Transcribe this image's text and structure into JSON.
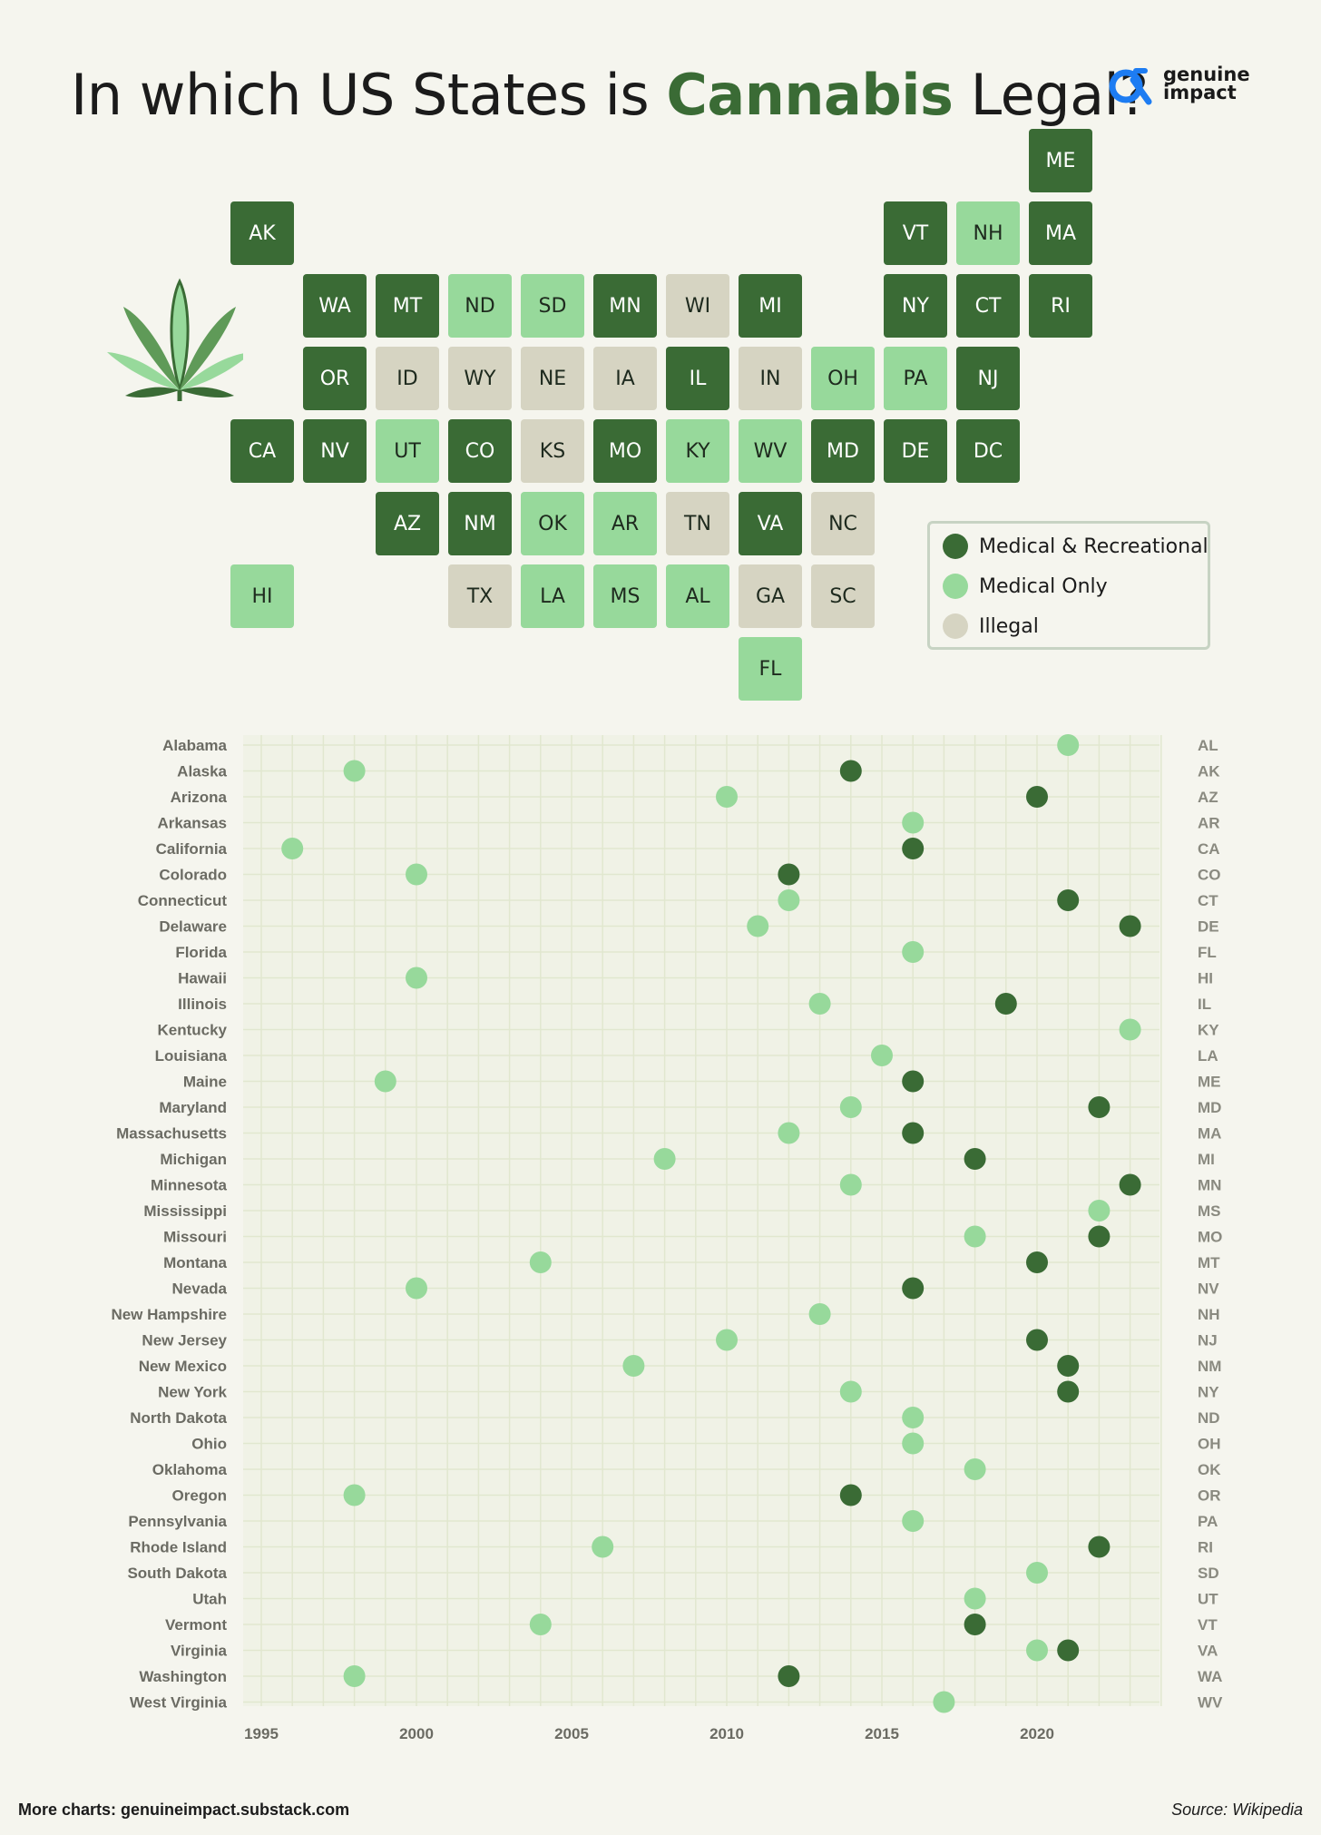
{
  "title": {
    "prefix": "In which US States is ",
    "highlight": "Cannabis",
    "suffix": " Legal?"
  },
  "brand": {
    "line1": "genuine",
    "line2": "impact"
  },
  "colors": {
    "recreational": "#3a6b35",
    "medical": "#97d99b",
    "illegal": "#d6d4c2",
    "bar": "#9fb59c"
  },
  "legend": [
    {
      "key": "rec",
      "label": "Medical & Recreational"
    },
    {
      "key": "med",
      "label": "Medical Only"
    },
    {
      "key": "ill",
      "label": "Illegal"
    }
  ],
  "map": {
    "rows": [
      [
        {
          "col": 11,
          "abbr": "ME",
          "status": "rec"
        }
      ],
      [
        {
          "col": 0,
          "abbr": "AK",
          "status": "rec"
        },
        {
          "col": 9,
          "abbr": "VT",
          "status": "rec"
        },
        {
          "col": 10,
          "abbr": "NH",
          "status": "med"
        },
        {
          "col": 11,
          "abbr": "MA",
          "status": "rec"
        }
      ],
      [
        {
          "col": 1,
          "abbr": "WA",
          "status": "rec"
        },
        {
          "col": 2,
          "abbr": "MT",
          "status": "rec"
        },
        {
          "col": 3,
          "abbr": "ND",
          "status": "med"
        },
        {
          "col": 4,
          "abbr": "SD",
          "status": "med"
        },
        {
          "col": 5,
          "abbr": "MN",
          "status": "rec"
        },
        {
          "col": 6,
          "abbr": "WI",
          "status": "ill"
        },
        {
          "col": 7,
          "abbr": "MI",
          "status": "rec"
        },
        {
          "col": 9,
          "abbr": "NY",
          "status": "rec"
        },
        {
          "col": 10,
          "abbr": "CT",
          "status": "rec"
        },
        {
          "col": 11,
          "abbr": "RI",
          "status": "rec"
        }
      ],
      [
        {
          "col": 1,
          "abbr": "OR",
          "status": "rec"
        },
        {
          "col": 2,
          "abbr": "ID",
          "status": "ill"
        },
        {
          "col": 3,
          "abbr": "WY",
          "status": "ill"
        },
        {
          "col": 4,
          "abbr": "NE",
          "status": "ill"
        },
        {
          "col": 5,
          "abbr": "IA",
          "status": "ill"
        },
        {
          "col": 6,
          "abbr": "IL",
          "status": "rec"
        },
        {
          "col": 7,
          "abbr": "IN",
          "status": "ill"
        },
        {
          "col": 8,
          "abbr": "OH",
          "status": "med"
        },
        {
          "col": 9,
          "abbr": "PA",
          "status": "med"
        },
        {
          "col": 10,
          "abbr": "NJ",
          "status": "rec"
        }
      ],
      [
        {
          "col": 0,
          "abbr": "CA",
          "status": "rec"
        },
        {
          "col": 1,
          "abbr": "NV",
          "status": "rec"
        },
        {
          "col": 2,
          "abbr": "UT",
          "status": "med"
        },
        {
          "col": 3,
          "abbr": "CO",
          "status": "rec"
        },
        {
          "col": 4,
          "abbr": "KS",
          "status": "ill"
        },
        {
          "col": 5,
          "abbr": "MO",
          "status": "rec"
        },
        {
          "col": 6,
          "abbr": "KY",
          "status": "med"
        },
        {
          "col": 7,
          "abbr": "WV",
          "status": "med"
        },
        {
          "col": 8,
          "abbr": "MD",
          "status": "rec"
        },
        {
          "col": 9,
          "abbr": "DE",
          "status": "rec"
        },
        {
          "col": 10,
          "abbr": "DC",
          "status": "rec"
        }
      ],
      [
        {
          "col": 2,
          "abbr": "AZ",
          "status": "rec"
        },
        {
          "col": 3,
          "abbr": "NM",
          "status": "rec"
        },
        {
          "col": 4,
          "abbr": "OK",
          "status": "med"
        },
        {
          "col": 5,
          "abbr": "AR",
          "status": "med"
        },
        {
          "col": 6,
          "abbr": "TN",
          "status": "ill"
        },
        {
          "col": 7,
          "abbr": "VA",
          "status": "rec"
        },
        {
          "col": 8,
          "abbr": "NC",
          "status": "ill"
        }
      ],
      [
        {
          "col": 0,
          "abbr": "HI",
          "status": "med"
        },
        {
          "col": 3,
          "abbr": "TX",
          "status": "ill"
        },
        {
          "col": 4,
          "abbr": "LA",
          "status": "med"
        },
        {
          "col": 5,
          "abbr": "MS",
          "status": "med"
        },
        {
          "col": 6,
          "abbr": "AL",
          "status": "med"
        },
        {
          "col": 7,
          "abbr": "GA",
          "status": "ill"
        },
        {
          "col": 8,
          "abbr": "SC",
          "status": "ill"
        }
      ],
      [
        {
          "col": 7,
          "abbr": "FL",
          "status": "med"
        }
      ]
    ]
  },
  "chart_data": {
    "type": "dumbbell",
    "x_ticks": [
      1995,
      2000,
      2005,
      2010,
      2015,
      2020
    ],
    "xlim": [
      1995,
      2024
    ],
    "series": [
      {
        "name": "Medical Only",
        "field": "medical"
      },
      {
        "name": "Medical & Recreational",
        "field": "recreational"
      }
    ],
    "states": [
      {
        "name": "Alabama",
        "abbr": "AL",
        "medical": 2021,
        "recreational": null
      },
      {
        "name": "Alaska",
        "abbr": "AK",
        "medical": 1998,
        "recreational": 2014
      },
      {
        "name": "Arizona",
        "abbr": "AZ",
        "medical": 2010,
        "recreational": 2020
      },
      {
        "name": "Arkansas",
        "abbr": "AR",
        "medical": 2016,
        "recreational": null
      },
      {
        "name": "California",
        "abbr": "CA",
        "medical": 1996,
        "recreational": 2016
      },
      {
        "name": "Colorado",
        "abbr": "CO",
        "medical": 2000,
        "recreational": 2012
      },
      {
        "name": "Connecticut",
        "abbr": "CT",
        "medical": 2012,
        "recreational": 2021
      },
      {
        "name": "Delaware",
        "abbr": "DE",
        "medical": 2011,
        "recreational": 2023
      },
      {
        "name": "Florida",
        "abbr": "FL",
        "medical": 2016,
        "recreational": null
      },
      {
        "name": "Hawaii",
        "abbr": "HI",
        "medical": 2000,
        "recreational": null
      },
      {
        "name": "Illinois",
        "abbr": "IL",
        "medical": 2013,
        "recreational": 2019
      },
      {
        "name": "Kentucky",
        "abbr": "KY",
        "medical": 2023,
        "recreational": null
      },
      {
        "name": "Louisiana",
        "abbr": "LA",
        "medical": 2015,
        "recreational": null
      },
      {
        "name": "Maine",
        "abbr": "ME",
        "medical": 1999,
        "recreational": 2016
      },
      {
        "name": "Maryland",
        "abbr": "MD",
        "medical": 2014,
        "recreational": 2022
      },
      {
        "name": "Massachusetts",
        "abbr": "MA",
        "medical": 2012,
        "recreational": 2016
      },
      {
        "name": "Michigan",
        "abbr": "MI",
        "medical": 2008,
        "recreational": 2018
      },
      {
        "name": "Minnesota",
        "abbr": "MN",
        "medical": 2014,
        "recreational": 2023
      },
      {
        "name": "Mississippi",
        "abbr": "MS",
        "medical": 2022,
        "recreational": null
      },
      {
        "name": "Missouri",
        "abbr": "MO",
        "medical": 2018,
        "recreational": 2022
      },
      {
        "name": "Montana",
        "abbr": "MT",
        "medical": 2004,
        "recreational": 2020
      },
      {
        "name": "Nevada",
        "abbr": "NV",
        "medical": 2000,
        "recreational": 2016
      },
      {
        "name": "New Hampshire",
        "abbr": "NH",
        "medical": 2013,
        "recreational": null
      },
      {
        "name": "New Jersey",
        "abbr": "NJ",
        "medical": 2010,
        "recreational": 2020
      },
      {
        "name": "New Mexico",
        "abbr": "NM",
        "medical": 2007,
        "recreational": 2021
      },
      {
        "name": "New York",
        "abbr": "NY",
        "medical": 2014,
        "recreational": 2021
      },
      {
        "name": "North Dakota",
        "abbr": "ND",
        "medical": 2016,
        "recreational": null
      },
      {
        "name": "Ohio",
        "abbr": "OH",
        "medical": 2016,
        "recreational": null
      },
      {
        "name": "Oklahoma",
        "abbr": "OK",
        "medical": 2018,
        "recreational": null
      },
      {
        "name": "Oregon",
        "abbr": "OR",
        "medical": 1998,
        "recreational": 2014
      },
      {
        "name": "Pennsylvania",
        "abbr": "PA",
        "medical": 2016,
        "recreational": null
      },
      {
        "name": "Rhode Island",
        "abbr": "RI",
        "medical": 2006,
        "recreational": 2022
      },
      {
        "name": "South Dakota",
        "abbr": "SD",
        "medical": 2020,
        "recreational": null
      },
      {
        "name": "Utah",
        "abbr": "UT",
        "medical": 2018,
        "recreational": null
      },
      {
        "name": "Vermont",
        "abbr": "VT",
        "medical": 2004,
        "recreational": 2018
      },
      {
        "name": "Virginia",
        "abbr": "VA",
        "medical": 2020,
        "recreational": 2021
      },
      {
        "name": "Washington",
        "abbr": "WA",
        "medical": 1998,
        "recreational": 2012
      },
      {
        "name": "West Virginia",
        "abbr": "WV",
        "medical": 2017,
        "recreational": null
      }
    ]
  },
  "footer": {
    "left": "More charts: genuineimpact.substack.com",
    "right": "Source: Wikipedia"
  }
}
